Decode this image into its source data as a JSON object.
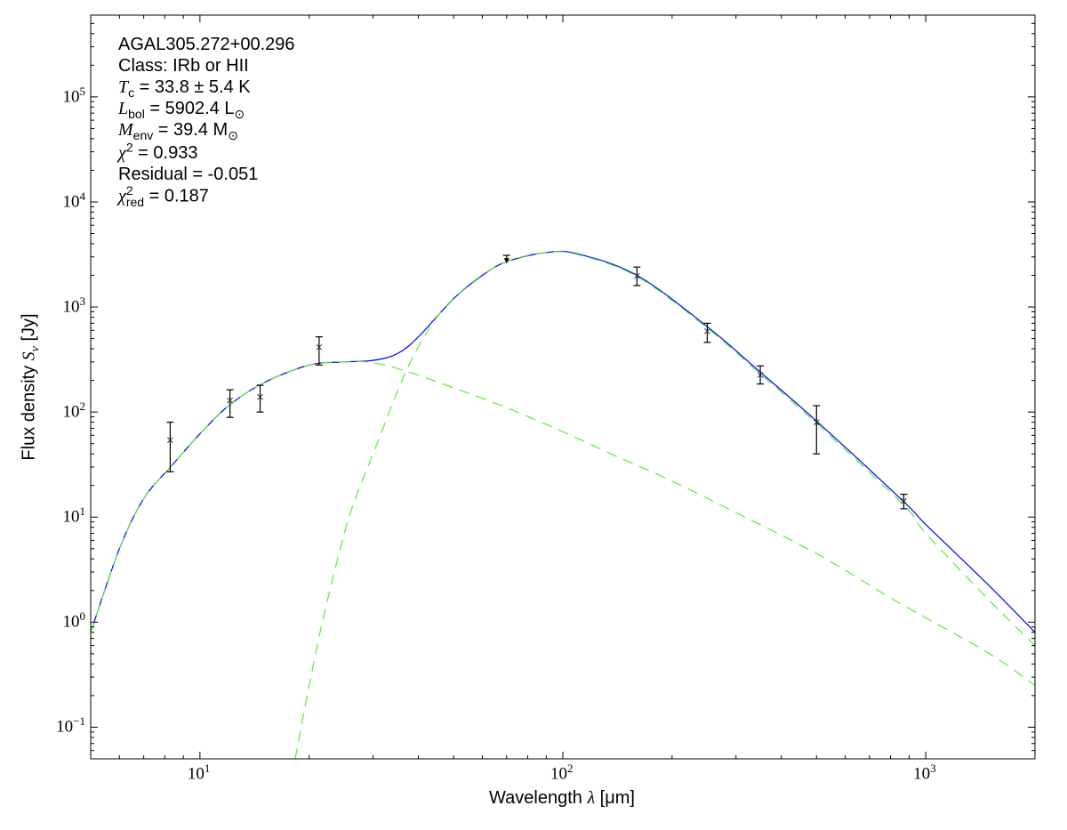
{
  "chart_data": {
    "type": "line",
    "xscale": "log",
    "yscale": "log",
    "xlim": [
      5,
      2000
    ],
    "ylim": [
      0.05,
      600000
    ],
    "xlabel": {
      "text": "Wavelength ",
      "symbol": "λ",
      "unit": " [μm]"
    },
    "ylabel": {
      "text": "Flux density ",
      "symbol": "S",
      "sub": "ν",
      "unit": " [Jy]"
    },
    "xticks": [
      {
        "base": "10",
        "exp": "1",
        "value": 10
      },
      {
        "base": "10",
        "exp": "2",
        "value": 100
      },
      {
        "base": "10",
        "exp": "3",
        "value": 1000
      }
    ],
    "yticks": [
      {
        "base": "10",
        "exp": "−1",
        "value": 0.1
      },
      {
        "base": "10",
        "exp": "0",
        "value": 1
      },
      {
        "base": "10",
        "exp": "1",
        "value": 10
      },
      {
        "base": "10",
        "exp": "2",
        "value": 100
      },
      {
        "base": "10",
        "exp": "3",
        "value": 1000
      },
      {
        "base": "10",
        "exp": "4",
        "value": 10000
      },
      {
        "base": "10",
        "exp": "5",
        "value": 100000
      }
    ],
    "annotations": {
      "source": "AGAL305.272+00.296",
      "class": "Class: IRb or HII",
      "tc": {
        "sym": "T",
        "sub": "c",
        "rest": " = 33.8 ± 5.4 K"
      },
      "lbol": {
        "sym": "L",
        "sub": "bol",
        "rest": " = 5902.4 L",
        "sun": "⊙"
      },
      "menv": {
        "sym": "M",
        "sub": "env",
        "rest": " = 39.4 M",
        "sun": "⊙"
      },
      "chi2": {
        "sym": "χ",
        "sup": "2",
        "rest": " = 0.933"
      },
      "residual": "Residual = -0.051",
      "chi2red": {
        "sym": "χ",
        "sup": "2",
        "sub": "red",
        "rest": " = 0.187"
      }
    },
    "series": [
      {
        "name": "total-fit",
        "color": "#0000ff",
        "dash": false,
        "x": [
          5,
          6,
          7,
          8.3,
          10,
          12,
          15,
          20,
          25,
          30,
          35,
          40,
          50,
          60,
          70,
          90,
          110,
          160,
          250,
          350,
          500,
          870,
          1000,
          1500,
          2000
        ],
        "y": [
          0.8,
          5,
          15,
          30,
          62,
          115,
          190,
          280,
          300,
          310,
          360,
          520,
          1200,
          2000,
          2700,
          3300,
          3200,
          2000,
          650,
          240,
          82,
          14,
          8.5,
          2.2,
          0.8
        ]
      },
      {
        "name": "warm-component",
        "color": "#55ee33",
        "dash": true,
        "x": [
          5,
          6,
          7,
          8.3,
          10,
          12,
          15,
          20,
          25,
          30,
          37,
          50,
          70,
          100,
          138,
          200,
          300,
          500,
          800,
          1000,
          1500,
          2000
        ],
        "y": [
          0.8,
          5,
          15,
          30,
          62,
          115,
          190,
          280,
          300,
          295,
          245,
          170,
          110,
          65,
          39,
          22,
          11,
          4.5,
          1.7,
          1.1,
          0.5,
          0.25
        ]
      },
      {
        "name": "cold-component",
        "color": "#55ee33",
        "dash": true,
        "x": [
          18.3,
          20,
          22,
          25,
          27,
          30,
          37,
          45,
          56,
          70,
          90,
          110,
          160,
          250,
          350,
          500,
          870,
          1000,
          1500,
          2000
        ],
        "y": [
          0.05,
          0.25,
          1.2,
          7,
          16,
          40,
          245,
          800,
          1700,
          2700,
          3300,
          3150,
          1950,
          630,
          230,
          78,
          13,
          7,
          1.6,
          0.6
        ]
      }
    ],
    "points": [
      {
        "x": 8.28,
        "y": 54,
        "lo": 27,
        "hi": 80,
        "upper_limit": false
      },
      {
        "x": 12.1,
        "y": 129,
        "lo": 89,
        "hi": 163,
        "upper_limit": false
      },
      {
        "x": 14.65,
        "y": 139,
        "lo": 100,
        "hi": 180,
        "upper_limit": false
      },
      {
        "x": 21.3,
        "y": 414,
        "lo": 280,
        "hi": 520,
        "upper_limit": false
      },
      {
        "x": 70,
        "y": 2900,
        "lo": 2700,
        "hi": 3100,
        "upper_limit": true
      },
      {
        "x": 160,
        "y": 1980,
        "lo": 1600,
        "hi": 2400,
        "upper_limit": false
      },
      {
        "x": 250,
        "y": 588,
        "lo": 460,
        "hi": 700,
        "upper_limit": false
      },
      {
        "x": 350,
        "y": 226,
        "lo": 185,
        "hi": 275,
        "upper_limit": false
      },
      {
        "x": 500,
        "y": 80,
        "lo": 40,
        "hi": 115,
        "upper_limit": false
      },
      {
        "x": 870,
        "y": 14.2,
        "lo": 12,
        "hi": 16.5,
        "upper_limit": false
      }
    ]
  }
}
